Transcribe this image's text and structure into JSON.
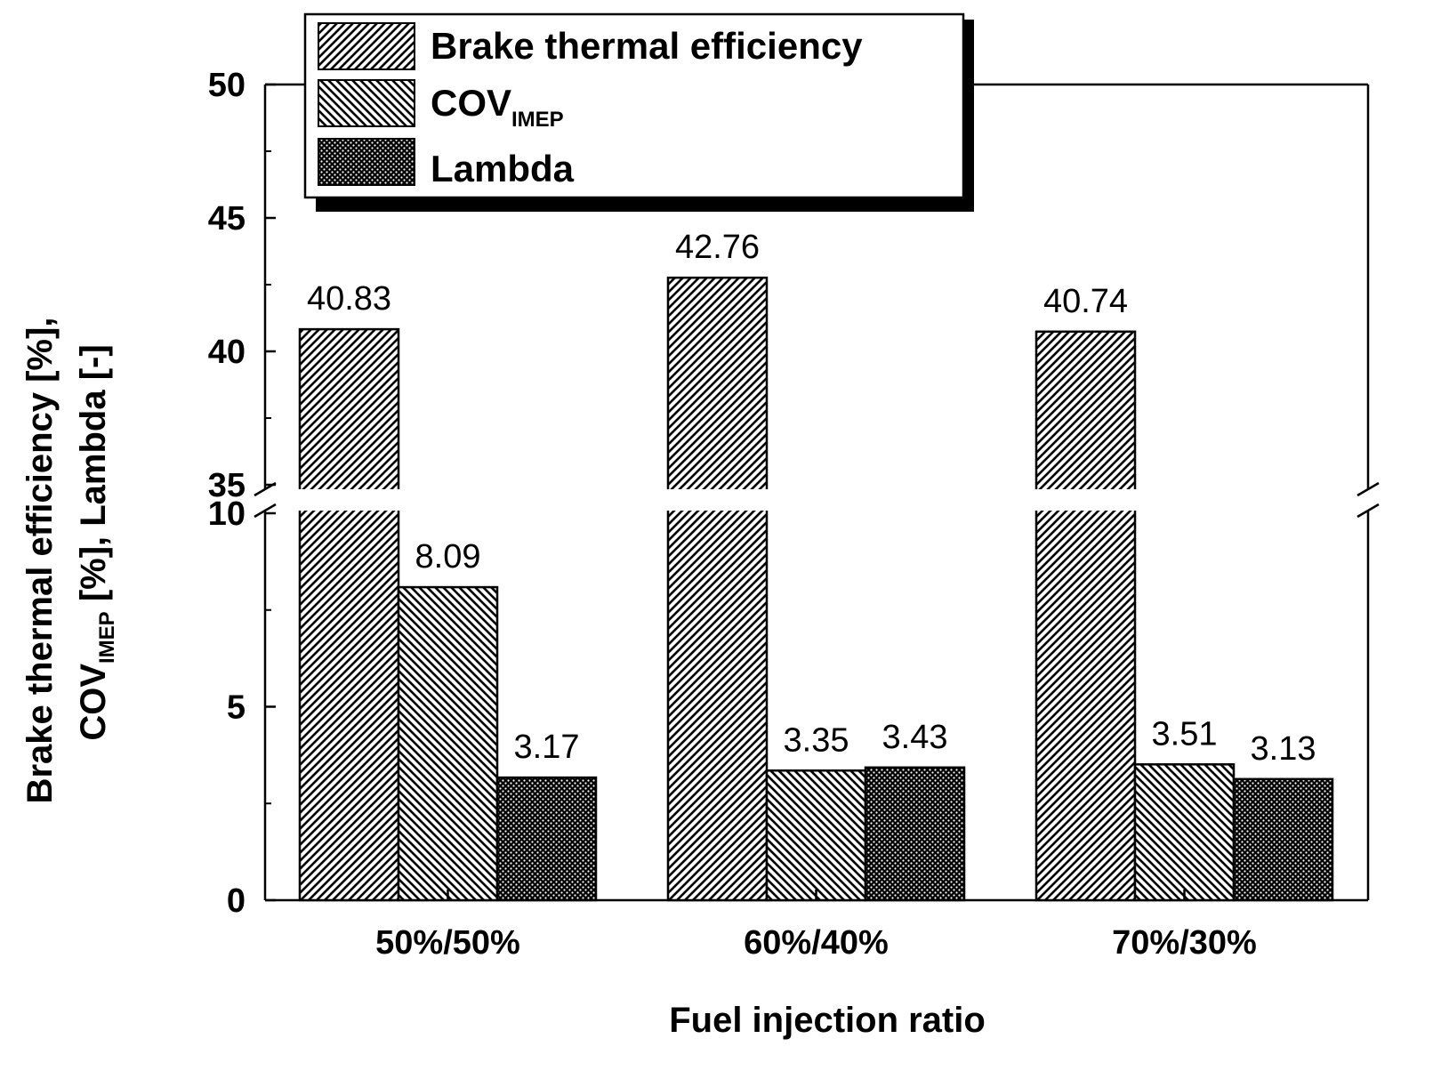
{
  "chart_data": {
    "type": "bar",
    "xlabel": "Fuel injection ratio",
    "ylabel_line1": "Brake thermal efficiency [%],",
    "ylabel_line2_main": "COV",
    "ylabel_line2_sub": "IMEP",
    "ylabel_line2_rest": " [%], Lambda [-]",
    "categories": [
      "50%/50%",
      "60%/40%",
      "70%/30%"
    ],
    "series": [
      {
        "name": "Brake thermal efficiency",
        "values": [
          40.83,
          42.76,
          40.74
        ],
        "labels": [
          "40.83",
          "42.76",
          "40.74"
        ]
      },
      {
        "name": "COV",
        "name_sub": "IMEP",
        "values": [
          8.09,
          3.35,
          3.51
        ],
        "labels": [
          "8.09",
          "3.35",
          "3.51"
        ]
      },
      {
        "name": "Lambda",
        "values": [
          3.17,
          3.43,
          3.13
        ],
        "labels": [
          "3.17",
          "3.43",
          "3.13"
        ]
      }
    ],
    "axis_break": {
      "lower_range": [
        0,
        10
      ],
      "upper_range": [
        35,
        50
      ]
    },
    "lower_ticks": [
      {
        "v": 0,
        "label": "0"
      },
      {
        "v": 5,
        "label": "5"
      },
      {
        "v": 10,
        "label": "10"
      }
    ],
    "upper_ticks": [
      {
        "v": 35,
        "label": "35"
      },
      {
        "v": 40,
        "label": "40"
      },
      {
        "v": 45,
        "label": "45"
      },
      {
        "v": 50,
        "label": "50"
      }
    ],
    "legend_position": "top-left"
  }
}
